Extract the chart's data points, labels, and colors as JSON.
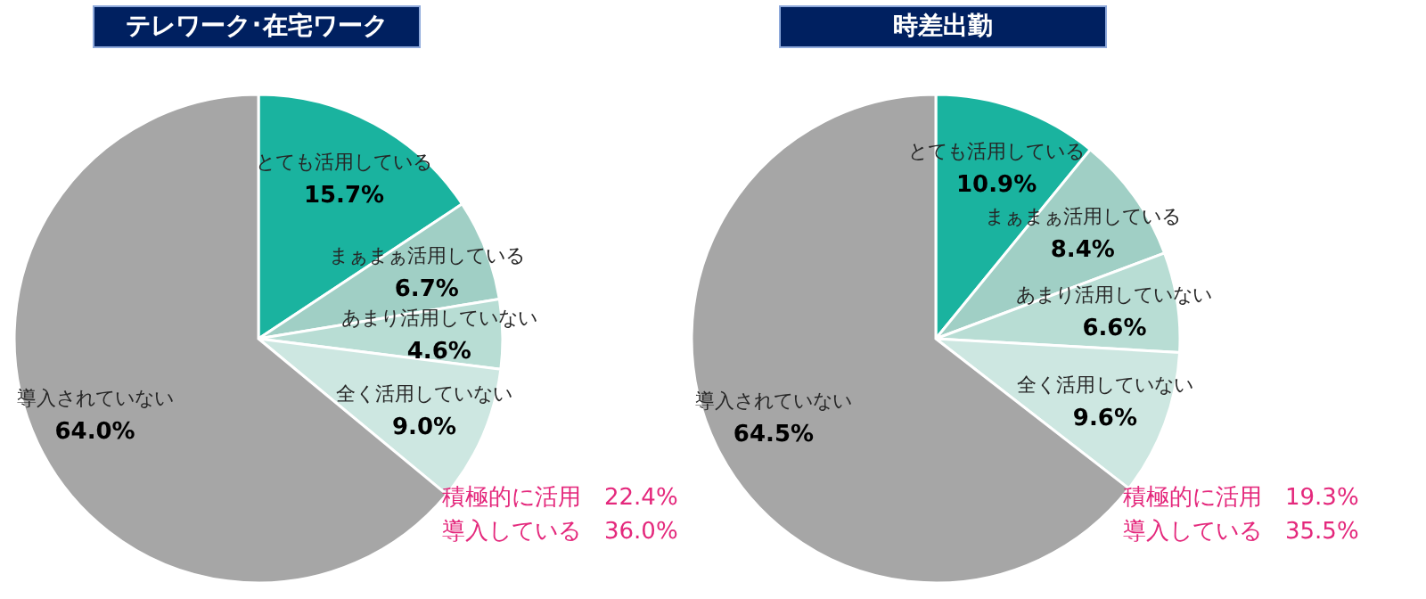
{
  "chart_data": [
    {
      "type": "pie",
      "title": "テレワーク･在宅ワーク",
      "categories": [
        "とても活用している",
        "まぁまぁ活用している",
        "あまり活用していない",
        "全く活用していない",
        "導入されていない"
      ],
      "values": [
        15.7,
        6.7,
        4.6,
        9.0,
        64.0
      ],
      "value_labels": [
        "15.7%",
        "6.7%",
        "4.6%",
        "9.0%",
        "64.0%"
      ],
      "colors": [
        "#1ab39f",
        "#a0cfc5",
        "#b8ddd4",
        "#cde7e1",
        "#a6a6a6"
      ],
      "annotations": [
        "積極的に活用　22.4%",
        "導入している　36.0%"
      ]
    },
    {
      "type": "pie",
      "title": "時差出勤",
      "categories": [
        "とても活用している",
        "まぁまぁ活用している",
        "あまり活用していない",
        "全く活用していない",
        "導入されていない"
      ],
      "values": [
        10.9,
        8.4,
        6.6,
        9.6,
        64.5
      ],
      "value_labels": [
        "10.9%",
        "8.4%",
        "6.6%",
        "9.6%",
        "64.5%"
      ],
      "colors": [
        "#1ab39f",
        "#a0cfc5",
        "#b8ddd4",
        "#cde7e1",
        "#a6a6a6"
      ],
      "annotations": [
        "積極的に活用　19.3%",
        "導入している　35.5%"
      ]
    }
  ]
}
